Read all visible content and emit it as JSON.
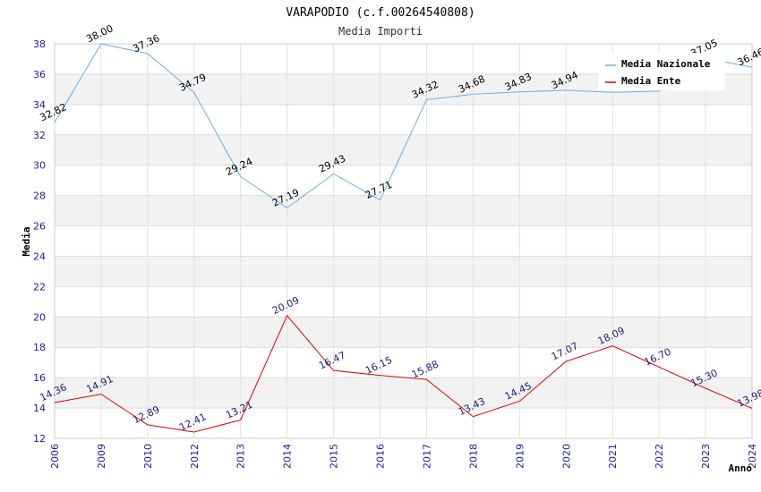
{
  "chart_data": {
    "type": "line",
    "title": "VARAPODIO (c.f.00264540808)",
    "subtitle": "Media Importi",
    "xlabel": "Anno",
    "ylabel": "Media",
    "ylim": [
      12,
      38
    ],
    "yticks": [
      12,
      14,
      16,
      18,
      20,
      22,
      24,
      26,
      28,
      30,
      32,
      34,
      36,
      38
    ],
    "categories": [
      "2006",
      "2009",
      "2010",
      "2012",
      "2013",
      "2014",
      "2015",
      "2016",
      "2017",
      "2018",
      "2019",
      "2020",
      "2021",
      "2022",
      "2023",
      "2024"
    ],
    "legend_position": "top-right",
    "series": [
      {
        "name": "Media Nazionale",
        "color": "#6aaee8",
        "values": [
          32.82,
          38.0,
          37.36,
          34.79,
          29.24,
          27.19,
          29.43,
          27.71,
          34.32,
          34.68,
          34.83,
          34.94,
          34.8,
          34.88,
          37.05,
          36.46
        ],
        "labels": [
          "32.82",
          "38.00",
          "37.36",
          "34.79",
          "29.24",
          "27.19",
          "29.43",
          "27.71",
          "34.32",
          "34.68",
          "34.83",
          "34.94",
          "",
          "",
          "37.05",
          "36.46"
        ]
      },
      {
        "name": "Media Ente",
        "color": "#e00000",
        "values": [
          14.36,
          14.91,
          12.89,
          12.41,
          13.21,
          20.09,
          16.47,
          16.15,
          15.88,
          13.43,
          14.45,
          17.07,
          18.09,
          16.7,
          15.3,
          13.98
        ],
        "labels": [
          "14.36",
          "14.91",
          "12.89",
          "12.41",
          "13.21",
          "20.09",
          "16.47",
          "16.15",
          "15.88",
          "13.43",
          "14.45",
          "17.07",
          "18.09",
          "16.70",
          "15.30",
          "13.98"
        ]
      }
    ]
  }
}
